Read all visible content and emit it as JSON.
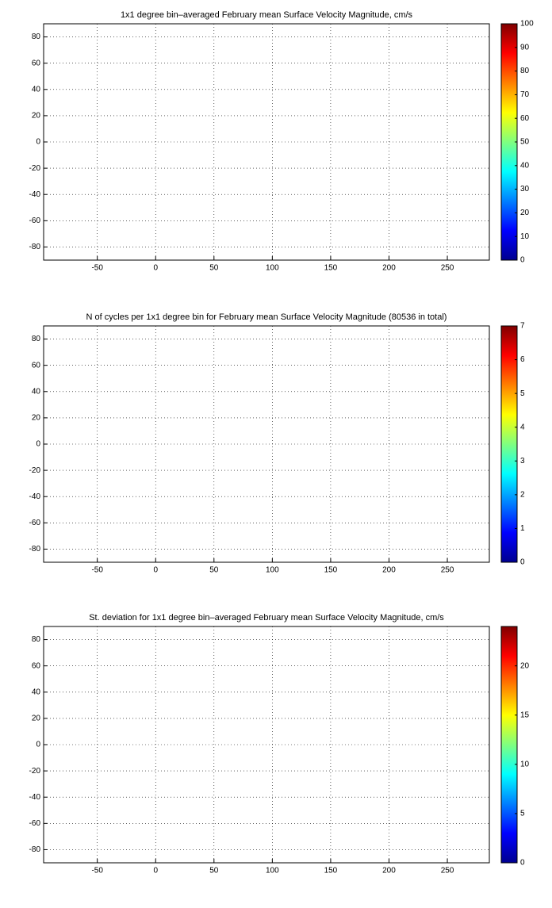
{
  "chart_data": [
    {
      "type": "heatmap",
      "title": "1x1 degree bin–averaged February mean Surface Velocity Magnitude, cm/s",
      "xlim": [
        -96,
        286
      ],
      "ylim": [
        -90,
        90
      ],
      "xticks": [
        -50,
        0,
        50,
        100,
        150,
        200,
        250
      ],
      "yticks": [
        -80,
        -60,
        -40,
        -20,
        0,
        20,
        40,
        60,
        80
      ],
      "clim": [
        0,
        100
      ],
      "cticks": [
        0,
        10,
        20,
        30,
        40,
        50,
        60,
        70,
        80,
        90,
        100
      ],
      "colormap": "jet",
      "grid": true
    },
    {
      "type": "heatmap",
      "title": "N of cycles per 1x1 degree bin for February mean Surface Velocity Magnitude (80536 in total)",
      "xlim": [
        -96,
        286
      ],
      "ylim": [
        -90,
        90
      ],
      "xticks": [
        -50,
        0,
        50,
        100,
        150,
        200,
        250
      ],
      "yticks": [
        -80,
        -60,
        -40,
        -20,
        0,
        20,
        40,
        60,
        80
      ],
      "clim": [
        0,
        7
      ],
      "cticks": [
        0,
        1,
        2,
        3,
        4,
        5,
        6,
        7
      ],
      "colormap": "jet",
      "grid": true
    },
    {
      "type": "heatmap",
      "title": "St. deviation for 1x1 degree bin–averaged February mean Surface Velocity Magnitude, cm/s",
      "xlim": [
        -96,
        286
      ],
      "ylim": [
        -90,
        90
      ],
      "xticks": [
        -50,
        0,
        50,
        100,
        150,
        200,
        250
      ],
      "yticks": [
        -80,
        -60,
        -40,
        -20,
        0,
        20,
        40,
        60,
        80
      ],
      "clim": [
        0,
        24
      ],
      "cticks": [
        0,
        5,
        10,
        15,
        20
      ],
      "colormap": "jet",
      "grid": true
    }
  ]
}
